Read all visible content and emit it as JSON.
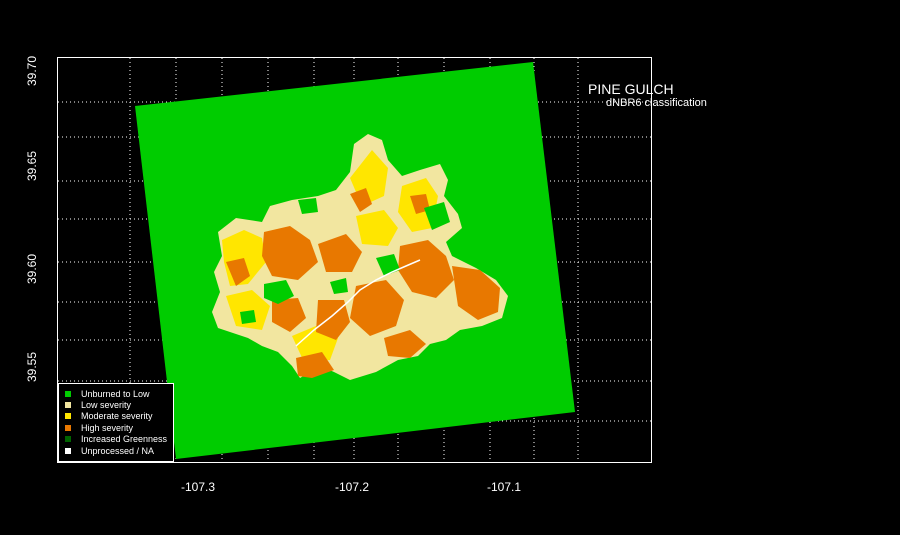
{
  "map": {
    "title": "PINE GULCH",
    "subtitle": "dNBR6 classification",
    "x_ticks": [
      "-107.3",
      "-107.2",
      "-107.1"
    ],
    "y_ticks": [
      "39.70",
      "39.65",
      "39.60",
      "39.55"
    ],
    "colors": {
      "unburned": "#00cc00",
      "low": "#f2e6a0",
      "moderate": "#ffe600",
      "high": "#e87800",
      "greenness": "#006400",
      "na": "#ffffff"
    }
  },
  "legend": {
    "items": [
      {
        "label": "Unburned to Low",
        "color": "#00cc00"
      },
      {
        "label": "Low severity",
        "color": "#f2e6a0"
      },
      {
        "label": "Moderate severity",
        "color": "#ffe600"
      },
      {
        "label": "High severity",
        "color": "#e87800"
      },
      {
        "label": "Increased Greenness",
        "color": "#006400"
      },
      {
        "label": "Unprocessed / NA",
        "color": "#ffffff"
      }
    ]
  }
}
